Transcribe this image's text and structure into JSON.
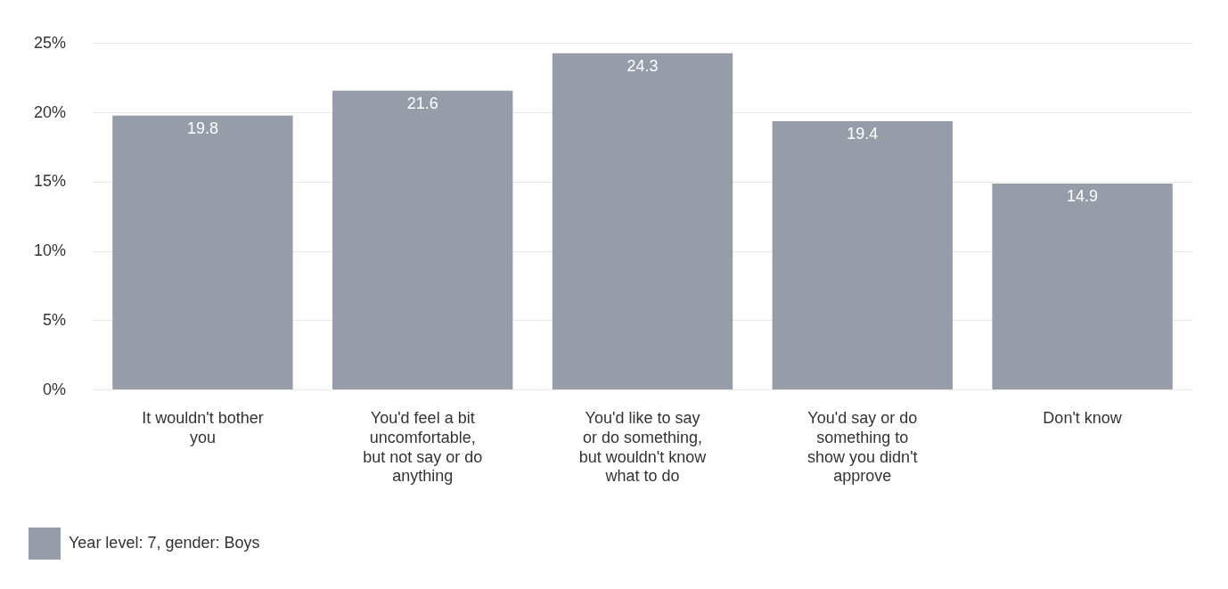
{
  "chart_data": {
    "type": "bar",
    "categories": [
      "It wouldn't bother you",
      "You'd feel a bit uncomfortable, but not say or do anything",
      "You'd like to say or do something, but wouldn't know what to do",
      "You'd say or do something to show you didn't approve",
      "Don't know"
    ],
    "series": [
      {
        "name": "Year level: 7, gender: Boys",
        "color": "#969ca8",
        "values": [
          19.8,
          21.6,
          24.3,
          19.4,
          14.9
        ]
      }
    ],
    "ylim": [
      0,
      25
    ],
    "yticks": [
      {
        "value": 0,
        "label": "0%"
      },
      {
        "value": 5,
        "label": "5%"
      },
      {
        "value": 10,
        "label": "10%"
      },
      {
        "value": 15,
        "label": "15%"
      },
      {
        "value": 20,
        "label": "20%"
      },
      {
        "value": 25,
        "label": "25%"
      }
    ],
    "grid": "y",
    "legend": "bottom left",
    "data_labels": true
  }
}
